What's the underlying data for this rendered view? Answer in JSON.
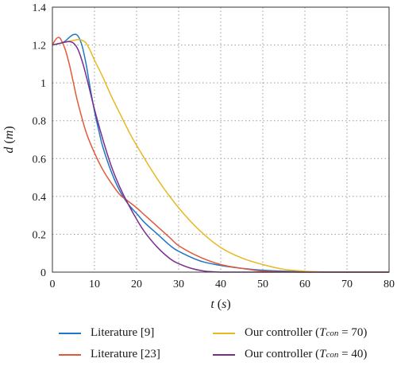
{
  "chart_data": {
    "type": "line",
    "xlabel": {
      "var": "t",
      "unit": "s"
    },
    "ylabel": {
      "var": "d",
      "unit": "m"
    },
    "xlim": [
      0,
      80
    ],
    "ylim": [
      0,
      1.4
    ],
    "x_ticks": [
      "0",
      "10",
      "20",
      "30",
      "40",
      "50",
      "60",
      "70",
      "80"
    ],
    "y_ticks": [
      "0",
      "0.2",
      "0.4",
      "0.6",
      "0.8",
      "1",
      "1.2",
      "1.4"
    ],
    "grid": true,
    "legend_position": "bottom",
    "series": [
      {
        "name": "Literature [9]",
        "color": "#1f77c4",
        "x": [
          0,
          1,
          2,
          3,
          4,
          5,
          6,
          7,
          8,
          9,
          10,
          11,
          12,
          14,
          16,
          18,
          20,
          22,
          25,
          28,
          30,
          35,
          40,
          45,
          50,
          55,
          60,
          65,
          70,
          80
        ],
        "y": [
          1.2,
          1.205,
          1.21,
          1.22,
          1.24,
          1.255,
          1.25,
          1.2,
          1.1,
          0.97,
          0.85,
          0.75,
          0.66,
          0.53,
          0.43,
          0.36,
          0.31,
          0.26,
          0.2,
          0.14,
          0.11,
          0.06,
          0.035,
          0.02,
          0.01,
          0.005,
          0.002,
          0.001,
          0.0,
          0.0
        ]
      },
      {
        "name": "Literature [23]",
        "color": "#e05a3a",
        "x": [
          0,
          0.5,
          1,
          1.5,
          2,
          3,
          4,
          5,
          6,
          8,
          10,
          12,
          14,
          16,
          18,
          20,
          22,
          25,
          28,
          30,
          35,
          40,
          45,
          50,
          55,
          60,
          70,
          80
        ],
        "y": [
          1.2,
          1.22,
          1.235,
          1.24,
          1.23,
          1.18,
          1.1,
          1.0,
          0.9,
          0.74,
          0.63,
          0.54,
          0.47,
          0.41,
          0.375,
          0.34,
          0.3,
          0.24,
          0.18,
          0.14,
          0.08,
          0.04,
          0.02,
          0.005,
          0.002,
          0.0,
          0.0,
          0.0
        ]
      },
      {
        "name": "Our controller",
        "tcon": "70",
        "color": "#e8b822",
        "x": [
          0,
          2,
          4,
          6,
          7,
          8,
          9,
          10,
          12,
          14,
          16,
          18,
          20,
          25,
          30,
          35,
          40,
          45,
          50,
          55,
          60,
          62,
          65,
          70,
          80
        ],
        "y": [
          1.2,
          1.21,
          1.22,
          1.228,
          1.226,
          1.21,
          1.17,
          1.12,
          1.03,
          0.93,
          0.84,
          0.75,
          0.67,
          0.49,
          0.34,
          0.22,
          0.13,
          0.075,
          0.04,
          0.015,
          0.005,
          0.002,
          0.0,
          0.0,
          0.0
        ]
      },
      {
        "name": "Our controller",
        "tcon": "40",
        "color": "#7b2d8e",
        "x": [
          0,
          1,
          2,
          3,
          4,
          5,
          6,
          7,
          8,
          9,
          10,
          12,
          14,
          16,
          18,
          20,
          22,
          25,
          28,
          30,
          33,
          36,
          38,
          40,
          45,
          50,
          60,
          70,
          80
        ],
        "y": [
          1.2,
          1.205,
          1.21,
          1.215,
          1.218,
          1.21,
          1.18,
          1.12,
          1.04,
          0.95,
          0.86,
          0.7,
          0.56,
          0.45,
          0.36,
          0.28,
          0.21,
          0.13,
          0.07,
          0.045,
          0.02,
          0.006,
          0.002,
          0.0,
          0.0,
          0.0,
          0.0,
          0.0,
          0.0
        ]
      }
    ]
  }
}
